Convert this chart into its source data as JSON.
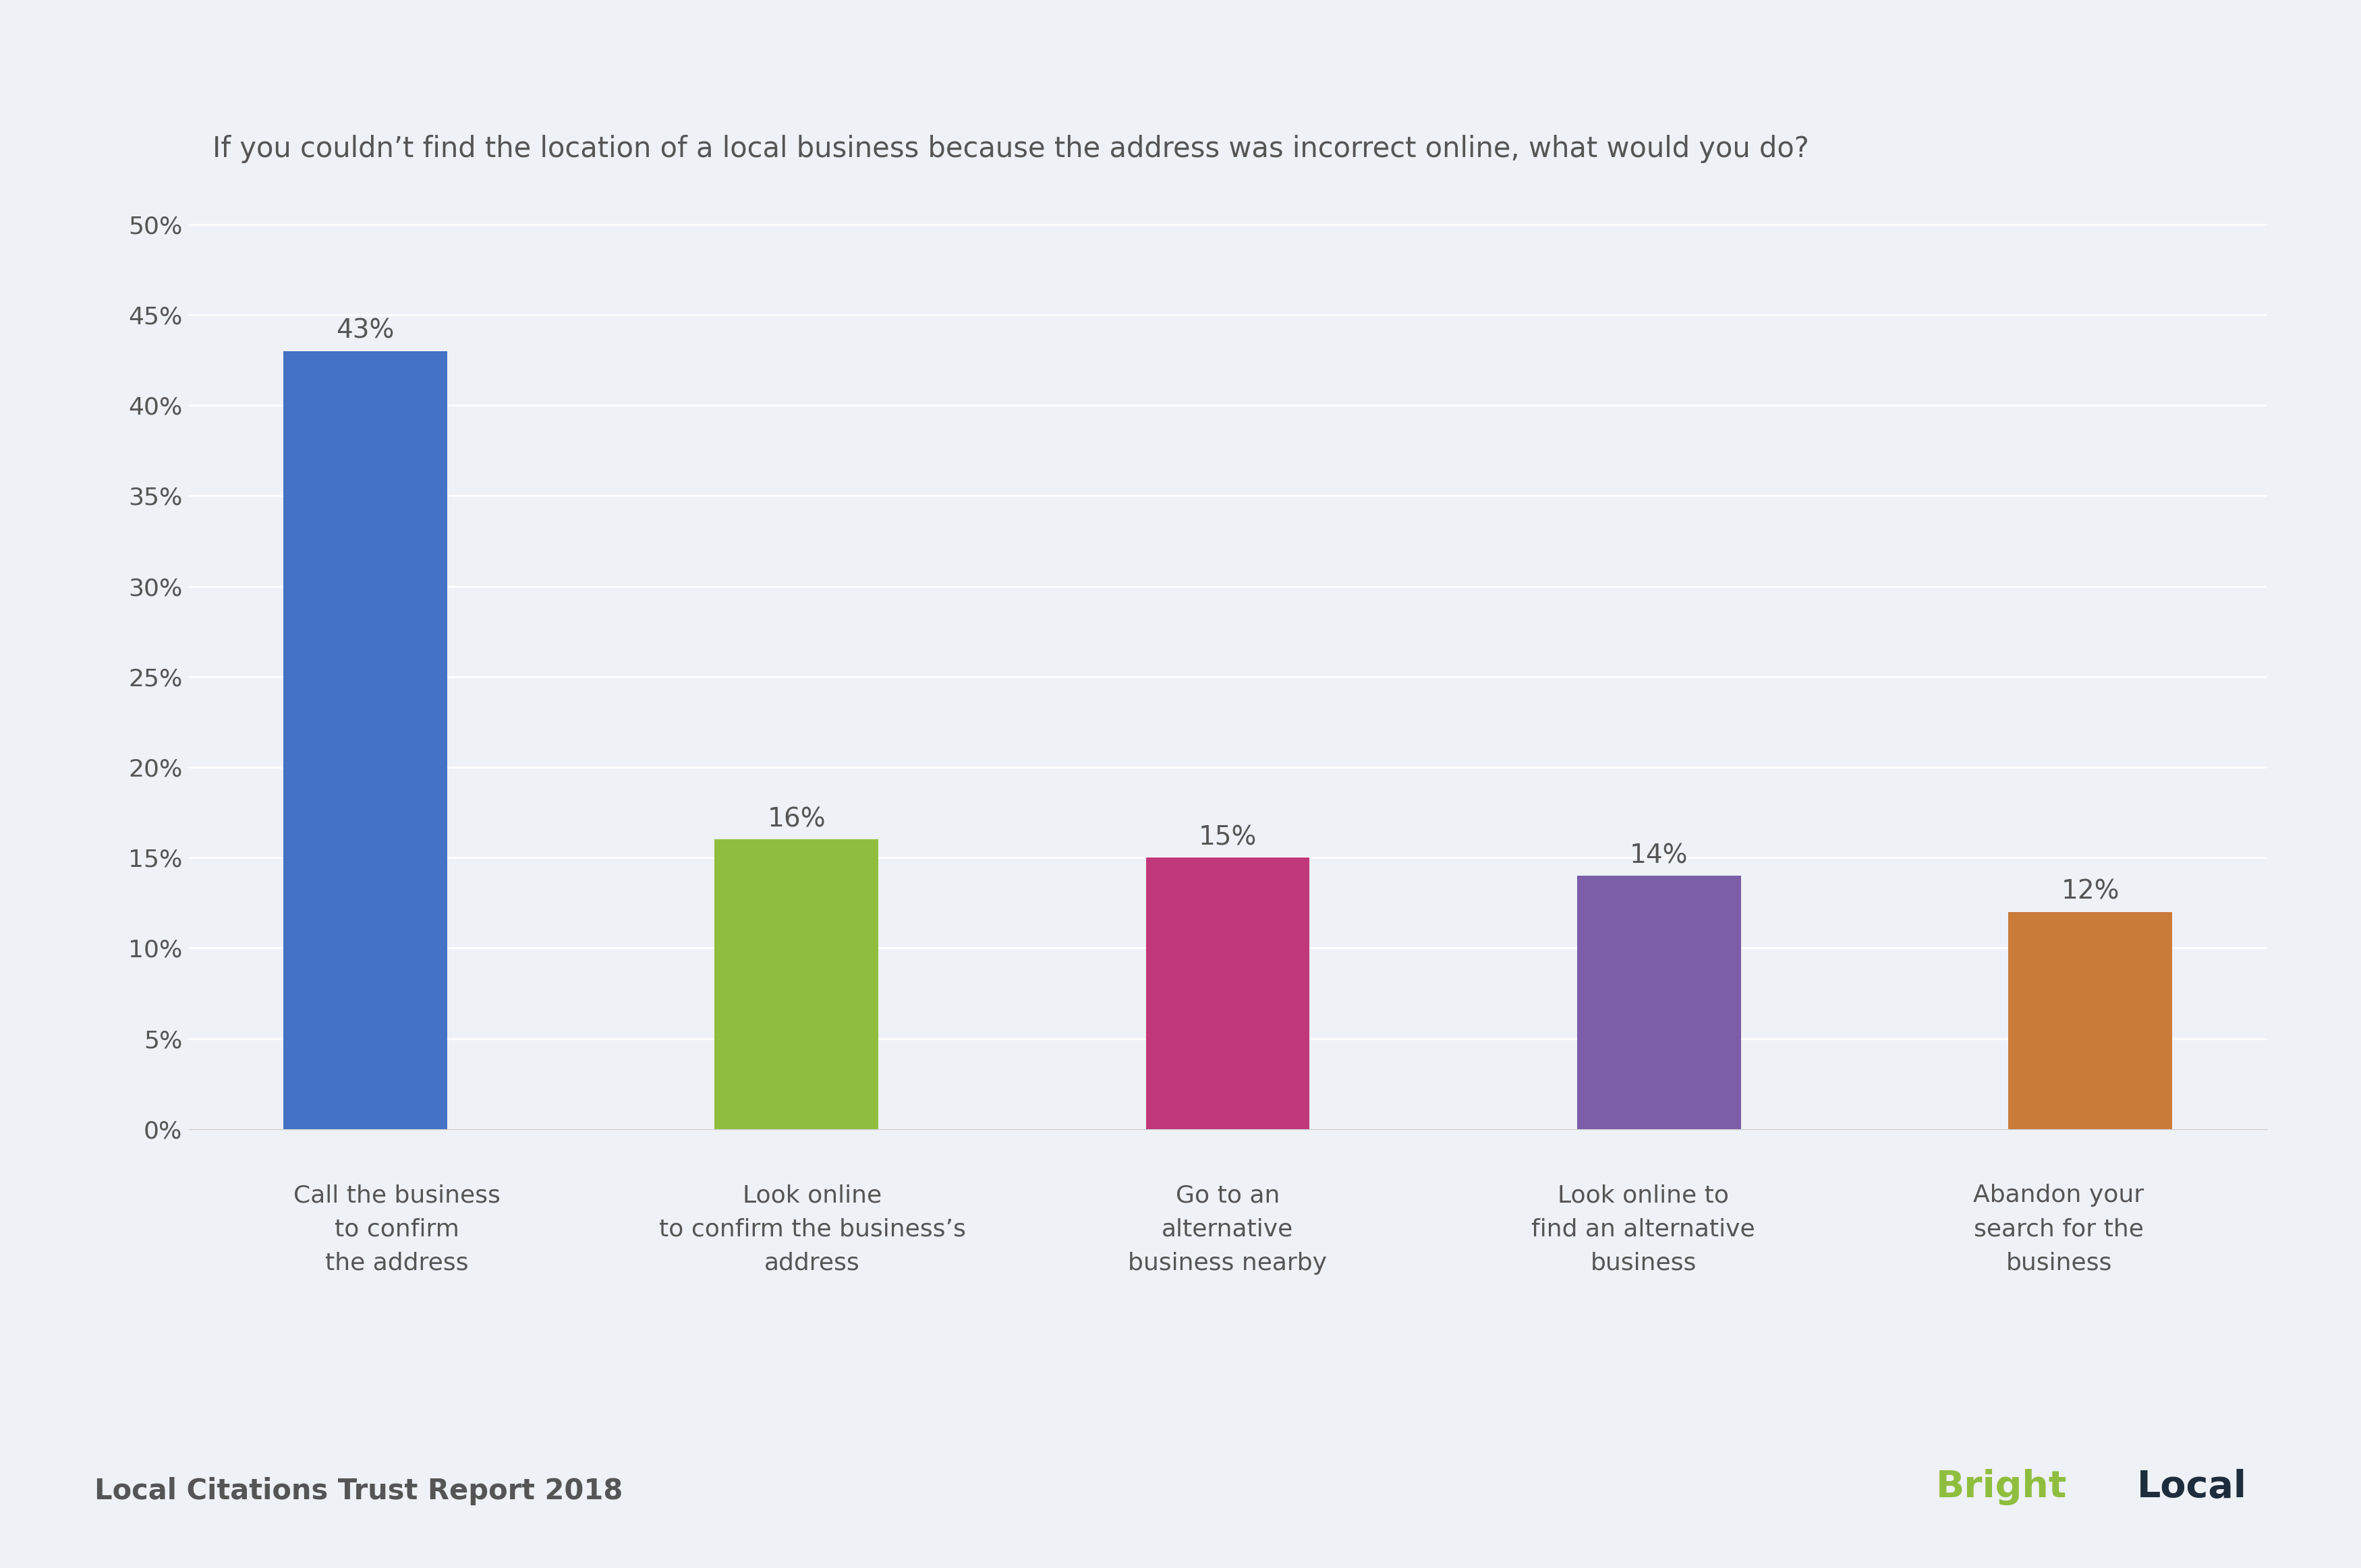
{
  "title": "If you couldn’t find the location of a local business because the address was incorrect online, what would you do?",
  "categories": [
    "Call the business\nto confirm\nthe address",
    "Look online\nto confirm the business’s\naddress",
    "Go to an\nalternative\nbusiness nearby",
    "Look online to\nfind an alternative\nbusiness",
    "Abandon your\nsearch for the\nbusiness"
  ],
  "values": [
    43,
    16,
    15,
    14,
    12
  ],
  "bar_colors": [
    "#4472c4",
    "#8fbe3f",
    "#c0387a",
    "#7b5ea7",
    "#c97b3a"
  ],
  "value_labels": [
    "43%",
    "16%",
    "15%",
    "14%",
    "12%"
  ],
  "yticks": [
    0,
    5,
    10,
    15,
    20,
    25,
    30,
    35,
    40,
    45,
    50
  ],
  "ytick_labels": [
    "0%",
    "5%",
    "10%",
    "15%",
    "20%",
    "25%",
    "30%",
    "35%",
    "40%",
    "45%",
    "50%"
  ],
  "ylim": [
    0,
    52
  ],
  "footer_left": "Local Citations Trust Report 2018",
  "brightlocal_bright_color": "#8fbe3f",
  "brightlocal_local_color": "#1e2d3d",
  "background_color": "#eef1f6",
  "text_color": "#555555",
  "title_fontsize": 30,
  "label_fontsize": 26,
  "tick_fontsize": 26,
  "footer_fontsize": 30,
  "value_fontsize": 28,
  "brightlocal_fontsize": 40
}
